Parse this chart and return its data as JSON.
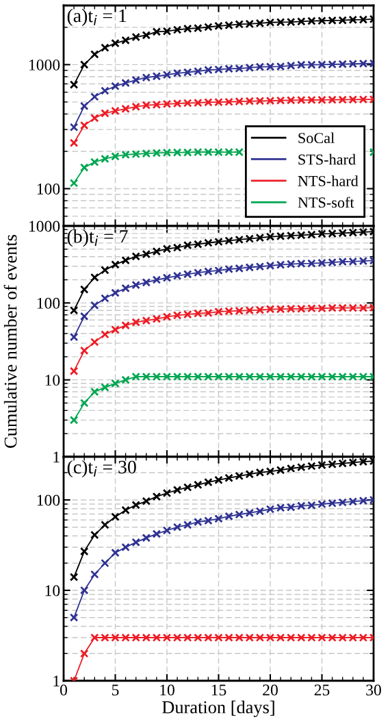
{
  "chart_data": [
    {
      "type": "line",
      "title": "(a)t$_{i}$ = 1",
      "x": [
        1,
        2,
        3,
        4,
        5,
        6,
        7,
        8,
        9,
        10,
        11,
        12,
        13,
        14,
        15,
        16,
        17,
        18,
        19,
        20,
        21,
        22,
        23,
        24,
        25,
        26,
        27,
        28,
        29,
        30
      ],
      "xlim": [
        0,
        30
      ],
      "xticks": [
        0,
        5,
        10,
        15,
        20,
        25,
        30
      ],
      "ylim": [
        50,
        3000
      ],
      "yticks": [
        100,
        1000
      ],
      "log": true,
      "grid": true,
      "marker": "cross",
      "line_style": "solid",
      "legend": "lower right",
      "tick_labels": "y",
      "series": [
        {
          "name": "SoCal",
          "color": "#000000",
          "values": [
            690,
            1000,
            1210,
            1370,
            1490,
            1570,
            1670,
            1730,
            1840,
            1860,
            1910,
            1950,
            1970,
            2010,
            2050,
            2080,
            2120,
            2130,
            2160,
            2190,
            2200,
            2210,
            2230,
            2250,
            2260,
            2270,
            2280,
            2300,
            2310,
            2330
          ]
        },
        {
          "name": "STS-hard",
          "color": "#2e3192",
          "values": [
            313,
            464,
            551,
            616,
            671,
            712,
            752,
            787,
            805,
            828,
            854,
            866,
            885,
            906,
            914,
            927,
            931,
            944,
            960,
            964,
            966,
            982,
            996,
            996,
            1000,
            1005,
            1010,
            1015,
            1020,
            1023
          ]
        },
        {
          "name": "NTS-hard",
          "color": "#ed1c24",
          "values": [
            234,
            324,
            371,
            406,
            424,
            440,
            458,
            471,
            475,
            481,
            486,
            490,
            492,
            497,
            499,
            501,
            505,
            508,
            510,
            512,
            514,
            516,
            518,
            519,
            520,
            521,
            522,
            523,
            524,
            525
          ]
        },
        {
          "name": "NTS-soft",
          "color": "#00a651",
          "values": [
            111,
            148,
            164,
            174,
            182,
            188,
            190,
            192,
            194,
            195,
            196,
            196,
            197,
            197,
            197,
            197,
            197,
            null,
            null,
            null,
            null,
            null,
            null,
            null,
            null,
            null,
            null,
            null,
            null,
            197
          ]
        }
      ]
    },
    {
      "type": "line",
      "title": "(b)t$_{i}$ = 7",
      "ylabel": "Cumulative number of events",
      "x": [
        1,
        2,
        3,
        4,
        5,
        6,
        7,
        8,
        9,
        10,
        11,
        12,
        13,
        14,
        15,
        16,
        17,
        18,
        19,
        20,
        21,
        22,
        23,
        24,
        25,
        26,
        27,
        28,
        29,
        30
      ],
      "xlim": [
        0,
        30
      ],
      "xticks": [
        0,
        5,
        10,
        15,
        20,
        25,
        30
      ],
      "ylim": [
        1,
        1000
      ],
      "yticks": [
        1,
        10,
        100,
        1000
      ],
      "log": true,
      "grid": true,
      "marker": "cross",
      "line_style": "solid",
      "tick_labels": "y",
      "series": [
        {
          "color": "#000000",
          "values": [
            80,
            150,
            214,
            267,
            315,
            358,
            402,
            430,
            468,
            505,
            524,
            561,
            579,
            605,
            624,
            644,
            664,
            684,
            705,
            726,
            738,
            749,
            761,
            773,
            791,
            796,
            809,
            821,
            833,
            846
          ]
        },
        {
          "color": "#2e3192",
          "values": [
            36,
            67,
            93,
            115,
            135,
            155,
            171,
            185,
            200,
            212,
            225,
            236,
            247,
            257,
            264,
            275,
            281,
            290,
            297,
            305,
            313,
            320,
            325,
            327,
            332,
            337,
            343,
            345,
            351,
            356
          ]
        },
        {
          "color": "#ed1c24",
          "values": [
            13,
            24,
            31,
            39,
            45,
            51,
            56,
            59,
            62,
            66,
            69,
            71,
            73,
            74,
            77,
            78,
            79,
            80,
            81,
            83,
            83,
            84,
            84,
            85,
            85,
            86,
            86,
            86,
            86,
            87
          ]
        },
        {
          "color": "#00a651",
          "values": [
            3,
            5,
            7,
            8,
            9,
            10,
            11,
            11,
            11,
            11,
            11,
            11,
            11,
            11,
            11,
            11,
            11,
            11,
            11,
            11,
            11,
            11,
            11,
            11,
            11,
            11,
            11,
            11,
            11,
            11
          ]
        }
      ]
    },
    {
      "type": "line",
      "title": "(c)t$_{i}$ = 30",
      "xlabel": "Duration [days]",
      "x": [
        1,
        2,
        3,
        4,
        5,
        6,
        7,
        8,
        9,
        10,
        11,
        12,
        13,
        14,
        15,
        16,
        17,
        18,
        19,
        20,
        21,
        22,
        23,
        24,
        25,
        26,
        27,
        28,
        29,
        30
      ],
      "xlim": [
        0,
        30
      ],
      "xticks": [
        0,
        5,
        10,
        15,
        20,
        25,
        30
      ],
      "ylim": [
        1,
        300
      ],
      "yticks": [
        1,
        10,
        100
      ],
      "log": true,
      "grid": true,
      "marker": "cross",
      "line_style": "solid",
      "series": [
        {
          "color": "#000000",
          "values": [
            14,
            27,
            41,
            53,
            65,
            77,
            88,
            97,
            109,
            119,
            129,
            138,
            147,
            157,
            166,
            175,
            184,
            193,
            201,
            207,
            214,
            223,
            230,
            237,
            243,
            248,
            254,
            259,
            265,
            269
          ]
        },
        {
          "color": "#2e3192",
          "values": [
            5,
            10,
            15,
            20,
            26,
            30,
            34,
            38,
            42,
            46,
            50,
            53,
            57,
            59,
            62,
            66,
            69,
            72,
            75,
            79,
            82,
            83,
            86,
            87,
            90,
            92,
            94,
            96,
            98,
            100
          ]
        },
        {
          "color": "#ed1c24",
          "values": [
            1,
            2,
            3,
            3,
            3,
            3,
            3,
            3,
            3,
            3,
            3,
            3,
            3,
            3,
            3,
            3,
            3,
            3,
            3,
            3,
            3,
            3,
            3,
            3,
            3,
            3,
            3,
            3,
            3,
            3
          ]
        }
      ]
    }
  ]
}
